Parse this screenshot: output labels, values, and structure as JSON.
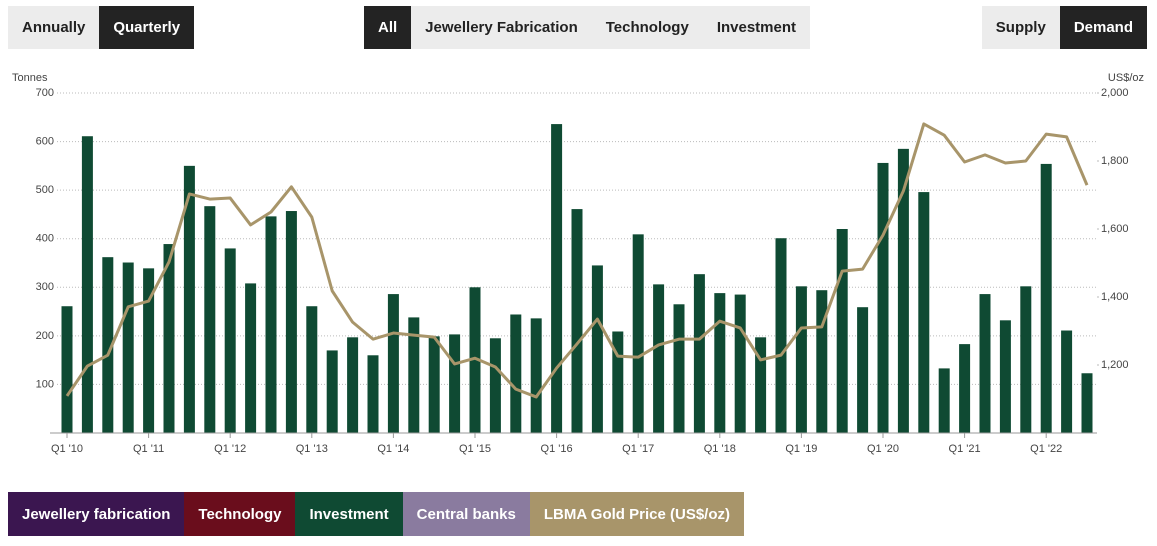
{
  "controls": {
    "period": [
      "Annually",
      "Quarterly"
    ],
    "sector": [
      "All",
      "Jewellery Fabrication",
      "Technology",
      "Investment"
    ],
    "view": [
      "Supply",
      "Demand"
    ]
  },
  "chart_data": {
    "type": "bar",
    "y_label": "Tonnes",
    "y2_label": "US$/oz",
    "categories": [
      "Q1 '10",
      null,
      null,
      null,
      "Q1 '11",
      null,
      null,
      null,
      "Q1 '12",
      null,
      null,
      null,
      "Q1 '13",
      null,
      null,
      null,
      "Q1 '14",
      null,
      null,
      null,
      "Q1 '15",
      null,
      null,
      null,
      "Q1 '16",
      null,
      null,
      null,
      "Q1 '17",
      null,
      null,
      null,
      "Q1 '18",
      null,
      null,
      null,
      "Q1 '19",
      null,
      null,
      null,
      "Q1 '20",
      null,
      null,
      null,
      "Q1 '21",
      null,
      null,
      null,
      "Q1 '22",
      null,
      null
    ],
    "series": [
      {
        "name": "Jewellery fabrication",
        "color": "#3b1650",
        "visible": false
      },
      {
        "name": "Technology",
        "color": "#6a0d1c",
        "visible": false
      },
      {
        "name": "Investment",
        "color": "#0f4a33",
        "type": "bar",
        "values": [
          261,
          611,
          362,
          351,
          339,
          389,
          550,
          467,
          380,
          308,
          446,
          457,
          261,
          170,
          197,
          160,
          286,
          238,
          199,
          203,
          300,
          195,
          244,
          236,
          636,
          461,
          345,
          209,
          409,
          306,
          265,
          327,
          288,
          285,
          197,
          401,
          302,
          294,
          420,
          259,
          556,
          585,
          496,
          133,
          183,
          286,
          232,
          302,
          554,
          211,
          123
        ]
      },
      {
        "name": "Central banks",
        "color": "#8a7b9f",
        "visible": false
      },
      {
        "name": "LBMA Gold Price (US$/oz)",
        "color": "#a8956a",
        "type": "line",
        "axis": "y2",
        "values": [
          1109,
          1197,
          1229,
          1371,
          1388,
          1503,
          1703,
          1688,
          1691,
          1612,
          1650,
          1724,
          1635,
          1418,
          1326,
          1276,
          1294,
          1288,
          1282,
          1203,
          1220,
          1194,
          1129,
          1106,
          1191,
          1262,
          1335,
          1226,
          1223,
          1259,
          1276,
          1276,
          1329,
          1309,
          1215,
          1229,
          1309,
          1312,
          1476,
          1482,
          1582,
          1712,
          1909,
          1876,
          1797,
          1818,
          1794,
          1800,
          1879,
          1871,
          1729
        ]
      }
    ],
    "ylim": [
      0,
      700
    ],
    "yticks": [
      100,
      200,
      300,
      400,
      500,
      600,
      700
    ],
    "y2lim": [
      1000,
      2000
    ],
    "y2ticks": [
      {
        "value": 1200,
        "label": "1,200"
      },
      {
        "value": 1400,
        "label": "1,400"
      },
      {
        "value": 1600,
        "label": "1,600"
      },
      {
        "value": 1800,
        "label": "1,800"
      },
      {
        "value": 2000,
        "label": "2,000"
      }
    ],
    "grid": true
  }
}
